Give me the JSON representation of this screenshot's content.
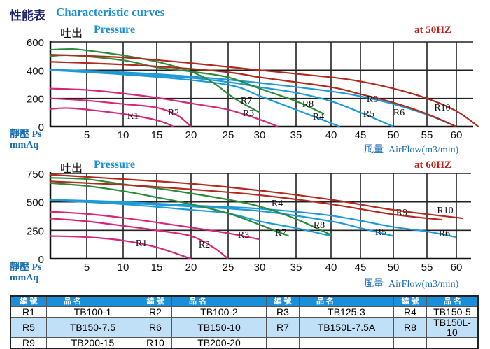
{
  "title_cn": "性能表",
  "title_en": "Characteristic curves",
  "colors": {
    "R1": "#d6267a",
    "R2": "#d6267a",
    "R3": "#d6267a",
    "R4": "#1e9ad6",
    "R5": "#1e9ad6",
    "R6": "#1e9ad6",
    "R7": "#2a8c3a",
    "R8": "#2a8c3a",
    "R9": "#b02a1e",
    "R10": "#b02a1e"
  },
  "chart_data": [
    {
      "type": "line",
      "pressure_cn": "吐出",
      "pressure_en": "Pressure",
      "frequency": "at  50HZ",
      "ylabel_cn": "靜壓 Ps",
      "ylabel_unit": "mmAq",
      "xlabel_cn": "風量",
      "xlabel_en": "AirFlow(m3/min)",
      "xticks": [
        5,
        10,
        15,
        20,
        25,
        30,
        35,
        40,
        45,
        50,
        55,
        60
      ],
      "yticks": [
        0,
        200,
        400,
        600
      ],
      "xlim": [
        0,
        60
      ],
      "ylim": [
        0,
        600
      ],
      "grid": true,
      "series": [
        {
          "name": "R1",
          "points": [
            [
              0,
              125
            ],
            [
              3,
              130
            ],
            [
              10,
              90
            ],
            [
              15,
              45
            ],
            [
              17.5,
              0
            ]
          ]
        },
        {
          "name": "R2",
          "points": [
            [
              0,
              200
            ],
            [
              5,
              185
            ],
            [
              10,
              160
            ],
            [
              15,
              135
            ],
            [
              18,
              80
            ],
            [
              20,
              0
            ]
          ]
        },
        {
          "name": "R3",
          "points": [
            [
              0,
              270
            ],
            [
              5,
              260
            ],
            [
              10,
              235
            ],
            [
              15,
              205
            ],
            [
              20,
              165
            ],
            [
              25,
              120
            ],
            [
              30,
              50
            ],
            [
              32.5,
              0
            ]
          ]
        },
        {
          "name": "R4",
          "points": [
            [
              0,
              400
            ],
            [
              10,
              370
            ],
            [
              20,
              330
            ],
            [
              26,
              287
            ],
            [
              30,
              218
            ],
            [
              35,
              120
            ],
            [
              41.5,
              0
            ]
          ]
        },
        {
          "name": "R5",
          "points": [
            [
              0,
              400
            ],
            [
              10,
              375
            ],
            [
              20,
              345
            ],
            [
              26,
              310
            ],
            [
              30,
              280
            ],
            [
              35,
              240
            ],
            [
              40,
              180
            ],
            [
              45,
              100
            ],
            [
              50,
              0
            ]
          ]
        },
        {
          "name": "R6",
          "points": [
            [
              0,
              405
            ],
            [
              10,
              385
            ],
            [
              20,
              355
            ],
            [
              30,
              310
            ],
            [
              40,
              250
            ],
            [
              45,
              215
            ],
            [
              50,
              160
            ],
            [
              55,
              85
            ],
            [
              60,
              0
            ]
          ]
        },
        {
          "name": "R7",
          "points": [
            [
              0,
              545
            ],
            [
              3,
              550
            ],
            [
              5,
              540
            ],
            [
              10,
              505
            ],
            [
              15,
              460
            ],
            [
              20,
              390
            ],
            [
              23,
              310
            ],
            [
              26,
              200
            ],
            [
              30,
              100
            ]
          ]
        },
        {
          "name": "R8",
          "points": [
            [
              0,
              500
            ],
            [
              3,
              505
            ],
            [
              10,
              470
            ],
            [
              15,
              420
            ],
            [
              20,
              390
            ],
            [
              25,
              350
            ],
            [
              30,
              270
            ],
            [
              35,
              180
            ],
            [
              39,
              90
            ]
          ]
        },
        {
          "name": "R9",
          "points": [
            [
              0,
              460
            ],
            [
              10,
              440
            ],
            [
              20,
              410
            ],
            [
              26,
              380
            ],
            [
              30,
              350
            ],
            [
              40,
              280
            ],
            [
              45,
              230
            ],
            [
              50,
              170
            ],
            [
              55,
              90
            ],
            [
              60,
              0
            ]
          ]
        },
        {
          "name": "R10",
          "points": [
            [
              0,
              510
            ],
            [
              10,
              490
            ],
            [
              20,
              450
            ],
            [
              30,
              400
            ],
            [
              40,
              350
            ],
            [
              45,
              320
            ],
            [
              50,
              270
            ],
            [
              55,
              200
            ],
            [
              60,
              110
            ],
            [
              63.5,
              0
            ]
          ]
        }
      ]
    },
    {
      "type": "line",
      "pressure_cn": "吐出",
      "pressure_en": "Pressure",
      "frequency": "at  60HZ",
      "ylabel_cn": "靜壓 Ps",
      "ylabel_unit": "mmAq",
      "xlabel_cn": "風量",
      "xlabel_en": "AirFlow(m3/min)",
      "xticks": [
        5,
        10,
        15,
        20,
        25,
        30,
        35,
        40,
        45,
        50,
        55,
        60
      ],
      "yticks": [
        0,
        250,
        500,
        750
      ],
      "xlim": [
        0,
        60
      ],
      "ylim": [
        0,
        750
      ],
      "grid": true,
      "series": [
        {
          "name": "R1",
          "points": [
            [
              0,
              200
            ],
            [
              5,
              190
            ],
            [
              10,
              160
            ],
            [
              15,
              100
            ],
            [
              20,
              0
            ]
          ]
        },
        {
          "name": "R2",
          "points": [
            [
              0,
              355
            ],
            [
              5,
              330
            ],
            [
              10,
              290
            ],
            [
              15,
              250
            ],
            [
              20,
              200
            ],
            [
              23,
              100
            ],
            [
              25,
              0
            ]
          ]
        },
        {
          "name": "R3",
          "points": [
            [
              0,
              415
            ],
            [
              5,
              395
            ],
            [
              10,
              360
            ],
            [
              15,
              320
            ],
            [
              20,
              275
            ],
            [
              25,
              225
            ],
            [
              30,
              170
            ]
          ]
        },
        {
          "name": "R4",
          "points": [
            [
              0,
              515
            ],
            [
              10,
              480
            ],
            [
              20,
              430
            ],
            [
              25,
              400
            ],
            [
              30,
              330
            ],
            [
              35,
              270
            ],
            [
              40,
              200
            ]
          ]
        },
        {
          "name": "R5",
          "points": [
            [
              0,
              515
            ],
            [
              10,
              490
            ],
            [
              20,
              460
            ],
            [
              30,
              420
            ],
            [
              40,
              330
            ],
            [
              45,
              270
            ],
            [
              50,
              200
            ]
          ]
        },
        {
          "name": "R6",
          "points": [
            [
              0,
              520
            ],
            [
              10,
              500
            ],
            [
              20,
              470
            ],
            [
              30,
              440
            ],
            [
              40,
              380
            ],
            [
              50,
              280
            ],
            [
              55,
              240
            ],
            [
              60,
              190
            ]
          ]
        },
        {
          "name": "R7",
          "points": [
            [
              0,
              665
            ],
            [
              5,
              640
            ],
            [
              10,
              595
            ],
            [
              15,
              540
            ],
            [
              20,
              480
            ],
            [
              25,
              400
            ],
            [
              30,
              300
            ],
            [
              34,
              200
            ]
          ]
        },
        {
          "name": "R8",
          "points": [
            [
              0,
              712
            ],
            [
              5,
              700
            ],
            [
              10,
              655
            ],
            [
              15,
              620
            ],
            [
              20,
              575
            ],
            [
              25,
              520
            ],
            [
              30,
              460
            ],
            [
              35,
              350
            ],
            [
              40,
              210
            ]
          ]
        },
        {
          "name": "R9",
          "points": [
            [
              0,
              680
            ],
            [
              10,
              650
            ],
            [
              20,
              610
            ],
            [
              30,
              560
            ],
            [
              40,
              480
            ],
            [
              50,
              390
            ],
            [
              57.5,
              344
            ]
          ]
        },
        {
          "name": "R10",
          "points": [
            [
              0,
              740
            ],
            [
              10,
              700
            ],
            [
              20,
              660
            ],
            [
              30,
              600
            ],
            [
              40,
              520
            ],
            [
              50,
              430
            ],
            [
              61,
              356
            ]
          ]
        }
      ]
    }
  ],
  "table": {
    "header": [
      "編 號",
      "品 名",
      "編 號",
      "品 名",
      "編 號",
      "品 名",
      "編 號",
      "品 名"
    ],
    "rows": [
      [
        "R1",
        "TB100-1",
        "R2",
        "TB100-2",
        "R3",
        "TB125-3",
        "R4",
        "TB150-5"
      ],
      [
        "R5",
        "TB150-7.5",
        "R6",
        "TB150-10",
        "R7",
        "TB150L-7.5A",
        "R8",
        "TB150L-10"
      ],
      [
        "R9",
        "TB200-15",
        "R10",
        "TB200-20",
        "",
        "",
        "",
        ""
      ]
    ]
  }
}
